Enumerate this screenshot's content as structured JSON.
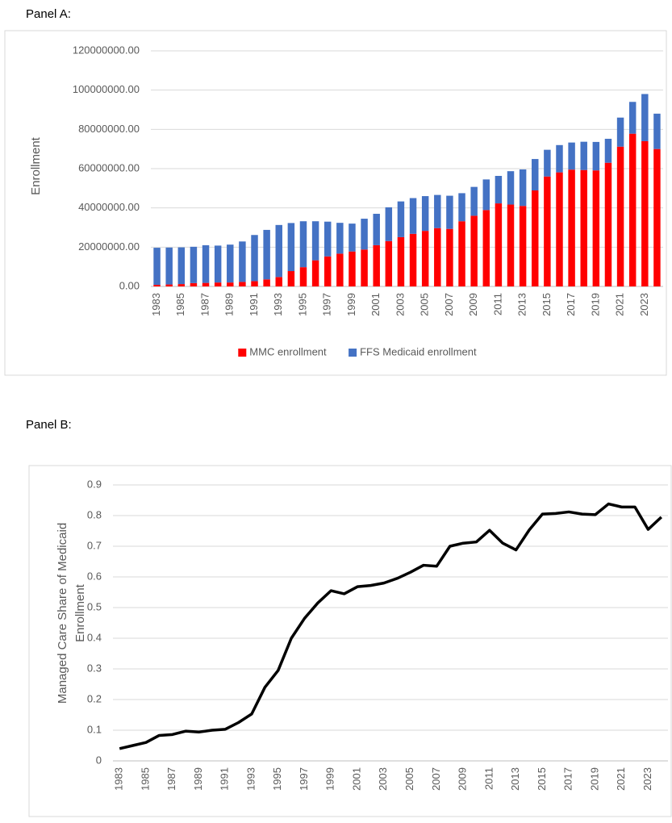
{
  "chart_data": [
    {
      "type": "bar",
      "label": "Panel A:",
      "ylabel": "Enrollment",
      "stacked": true,
      "grid": true,
      "legend": "bottom",
      "categories": [
        "1983",
        null,
        "1985",
        null,
        "1987",
        null,
        "1989",
        null,
        "1991",
        null,
        "1993",
        null,
        "1995",
        null,
        "1997",
        null,
        "1999",
        null,
        "2001",
        null,
        "2003",
        null,
        "2005",
        null,
        "2007",
        null,
        "2009",
        null,
        "2011",
        null,
        "2013",
        null,
        "2015",
        null,
        "2017",
        null,
        "2019",
        null,
        "2021",
        null,
        "2023",
        null
      ],
      "series": [
        {
          "name": "MMC enrollment",
          "color": "#ff0000",
          "values": [
            800000,
            1000000,
            1200000,
            1700000,
            1800000,
            2000000,
            2000000,
            2300000,
            2700000,
            3600000,
            4800000,
            7800000,
            9800000,
            13300000,
            15300000,
            16700000,
            17800000,
            18800000,
            21000000,
            23100000,
            25100000,
            26800000,
            28300000,
            29700000,
            29300000,
            33200000,
            36000000,
            38900000,
            42300000,
            41700000,
            41000000,
            48900000,
            56000000,
            58100000,
            59500000,
            59300000,
            59100000,
            63000000,
            71200000,
            77800000,
            74000000,
            70000000
          ]
        },
        {
          "name": "FFS Medicaid enrollment",
          "color": "#4472c4",
          "values": [
            18900000,
            18800000,
            18700000,
            18500000,
            19200000,
            18800000,
            19300000,
            20600000,
            23500000,
            25200000,
            26500000,
            24500000,
            23400000,
            19900000,
            17700000,
            15700000,
            14200000,
            15700000,
            16000000,
            17200000,
            18200000,
            18200000,
            17700000,
            16900000,
            16900000,
            14300000,
            14700000,
            15600000,
            14000000,
            17000000,
            18600000,
            16000000,
            13600000,
            13900000,
            13800000,
            14400000,
            14500000,
            12200000,
            14800000,
            16200000,
            24000000,
            18000000
          ]
        }
      ],
      "ylim": [
        0,
        120000000
      ],
      "yticks": [
        {
          "value": 0,
          "label": "0.00"
        },
        {
          "value": 20000000,
          "label": "20000000.00"
        },
        {
          "value": 40000000,
          "label": "40000000.00"
        },
        {
          "value": 60000000,
          "label": "60000000.00"
        },
        {
          "value": 80000000,
          "label": "80000000.00"
        },
        {
          "value": 100000000,
          "label": "100000000.00"
        },
        {
          "value": 120000000,
          "label": "120000000.00"
        }
      ]
    },
    {
      "type": "line",
      "label": "Panel B:",
      "ylabel_lines": [
        "Managed Care Share of Medicaid",
        "Enrollment"
      ],
      "grid": true,
      "color": "#000000",
      "categories": [
        "1983",
        null,
        "1985",
        null,
        "1987",
        null,
        "1989",
        null,
        "1991",
        null,
        "1993",
        null,
        "1995",
        null,
        "1997",
        null,
        "1999",
        null,
        "2001",
        null,
        "2003",
        null,
        "2005",
        null,
        "2007",
        null,
        "2009",
        null,
        "2011",
        null,
        "2013",
        null,
        "2015",
        null,
        "2017",
        null,
        "2019",
        null,
        "2021",
        null,
        "2023",
        null
      ],
      "values": [
        0.04,
        0.05,
        0.06,
        0.083,
        0.086,
        0.097,
        0.094,
        0.1,
        0.103,
        0.125,
        0.153,
        0.24,
        0.295,
        0.4,
        0.465,
        0.515,
        0.555,
        0.545,
        0.568,
        0.572,
        0.58,
        0.595,
        0.615,
        0.638,
        0.635,
        0.7,
        0.71,
        0.714,
        0.752,
        0.71,
        0.688,
        0.753,
        0.805,
        0.807,
        0.812,
        0.805,
        0.803,
        0.838,
        0.828,
        0.828,
        0.755,
        0.795
      ],
      "ylim": [
        0,
        0.9
      ],
      "yticks": [
        0,
        0.1,
        0.2,
        0.3,
        0.4,
        0.5,
        0.6,
        0.7,
        0.8,
        0.9
      ]
    }
  ]
}
